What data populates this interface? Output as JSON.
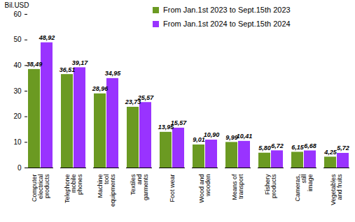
{
  "chart_data": {
    "type": "bar",
    "y_label": "Bil.USD",
    "categories": [
      "Computer electrical products",
      "Telephone mobile phones",
      "Machine tool equipments",
      "Textiles and garments",
      "Foot wear",
      "Wood and wooden",
      "Means of transport",
      "Fishery products",
      "Cameras, still image",
      "Vegetables and fruits"
    ],
    "series": [
      {
        "name": "From Jan.1st 2023 to Sept.15th 2023",
        "color": "#6b9a22",
        "values": [
          38.49,
          36.51,
          28.96,
          23.73,
          13.95,
          9.01,
          9.99,
          5.8,
          6.15,
          4.25
        ],
        "value_labels": [
          "38,49",
          "36,51",
          "28,96",
          "23,73",
          "13,95",
          "9,01",
          "9,99",
          "5,80",
          "6,15",
          "4,25"
        ]
      },
      {
        "name": "From Jan.1st 2024 to Sept.15th 2024",
        "color": "#9933ff",
        "values": [
          48.92,
          39.17,
          34.95,
          25.57,
          15.57,
          10.9,
          10.41,
          6.72,
          6.68,
          5.72
        ],
        "value_labels": [
          "48,92",
          "39,17",
          "34,95",
          "25,57",
          "15,57",
          "10,90",
          "10,41",
          "6,72",
          "6,68",
          "5,72"
        ]
      }
    ],
    "ylim": [
      0,
      60
    ],
    "yticks": [
      0,
      10,
      20,
      30,
      40,
      50,
      60
    ],
    "grid": false,
    "legend": "top-right",
    "data_labels": true
  }
}
